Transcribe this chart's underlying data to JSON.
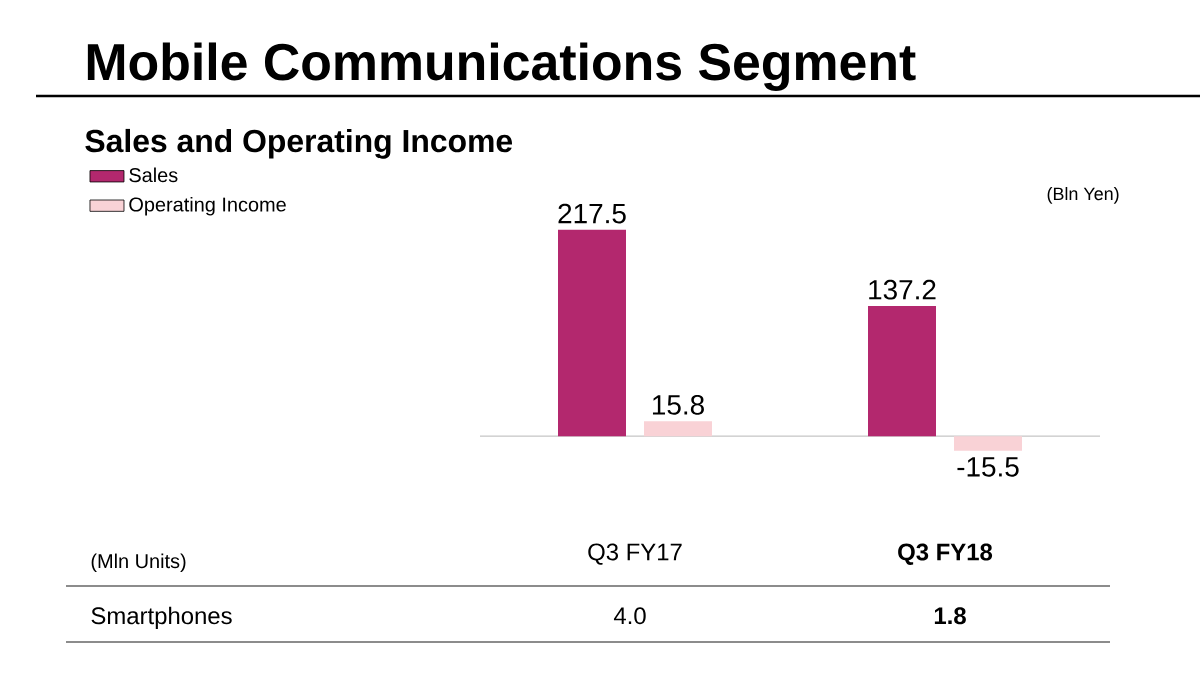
{
  "chart_data": {
    "type": "bar",
    "title": "Mobile Communications Segment",
    "subtitle": "Sales and Operating Income",
    "categories": [
      "Q3 FY17",
      "Q3 FY18"
    ],
    "series": [
      {
        "name": "Sales",
        "color": "#b3286e",
        "values": [
          217.5,
          137.2
        ]
      },
      {
        "name": "Operating Income",
        "color": "#f9d2d6",
        "values": [
          15.8,
          -15.5
        ]
      }
    ],
    "data_labels": true,
    "legend": "top left",
    "annotations": [
      "(Bln Yen)",
      "(Mln Units)",
      "Smartphones",
      "4.0",
      "1.8"
    ]
  }
}
